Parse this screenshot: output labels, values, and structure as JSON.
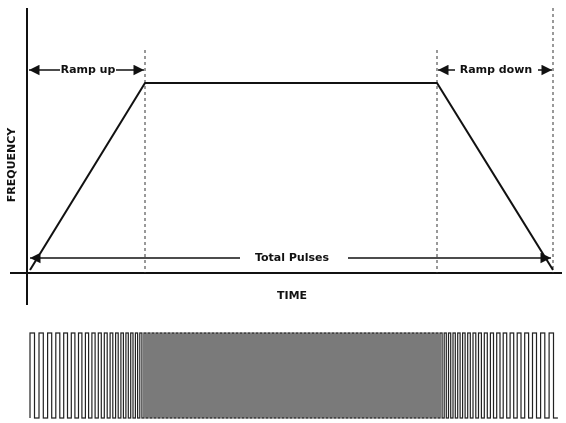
{
  "labels": {
    "ramp_up": "Ramp up",
    "ramp_down": "Ramp down",
    "total_pulses": "Total Pulses",
    "y_axis": "FREQUENCY",
    "x_axis": "TIME"
  }
}
